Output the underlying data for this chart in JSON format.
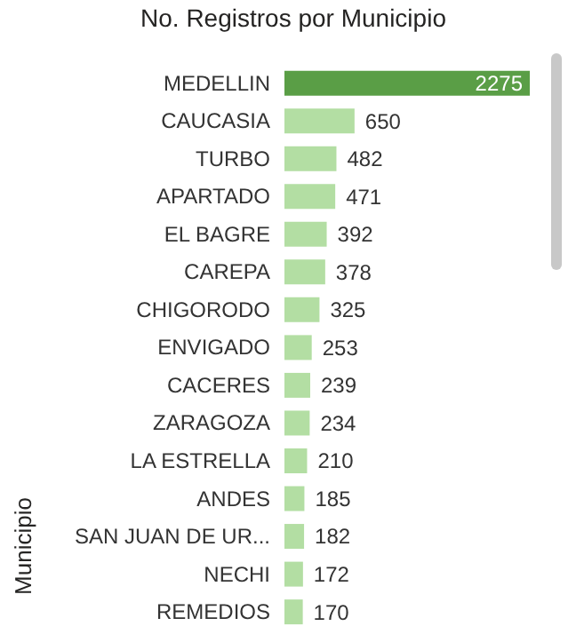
{
  "chart_data": {
    "type": "bar",
    "orientation": "horizontal",
    "title": "No. Registros por Municipio",
    "ylabel": "Municipio",
    "categories": [
      "MEDELLIN",
      "CAUCASIA",
      "TURBO",
      "APARTADO",
      "EL BAGRE",
      "CAREPA",
      "CHIGORODO",
      "ENVIGADO",
      "CACERES",
      "ZARAGOZA",
      "LA ESTRELLA",
      "ANDES",
      "SAN JUAN DE UR...",
      "NECHI",
      "REMEDIOS"
    ],
    "values": [
      2275,
      650,
      482,
      471,
      392,
      378,
      325,
      253,
      239,
      234,
      210,
      185,
      182,
      172,
      170
    ],
    "colors": [
      "#5a9e46",
      "#b3dea3",
      "#b3dea3",
      "#b3dea3",
      "#b3dea3",
      "#b3dea3",
      "#b3dea3",
      "#b3dea3",
      "#b3dea3",
      "#b3dea3",
      "#b3dea3",
      "#b3dea3",
      "#b3dea3",
      "#b3dea3",
      "#b3dea3"
    ],
    "data_labels": true
  }
}
